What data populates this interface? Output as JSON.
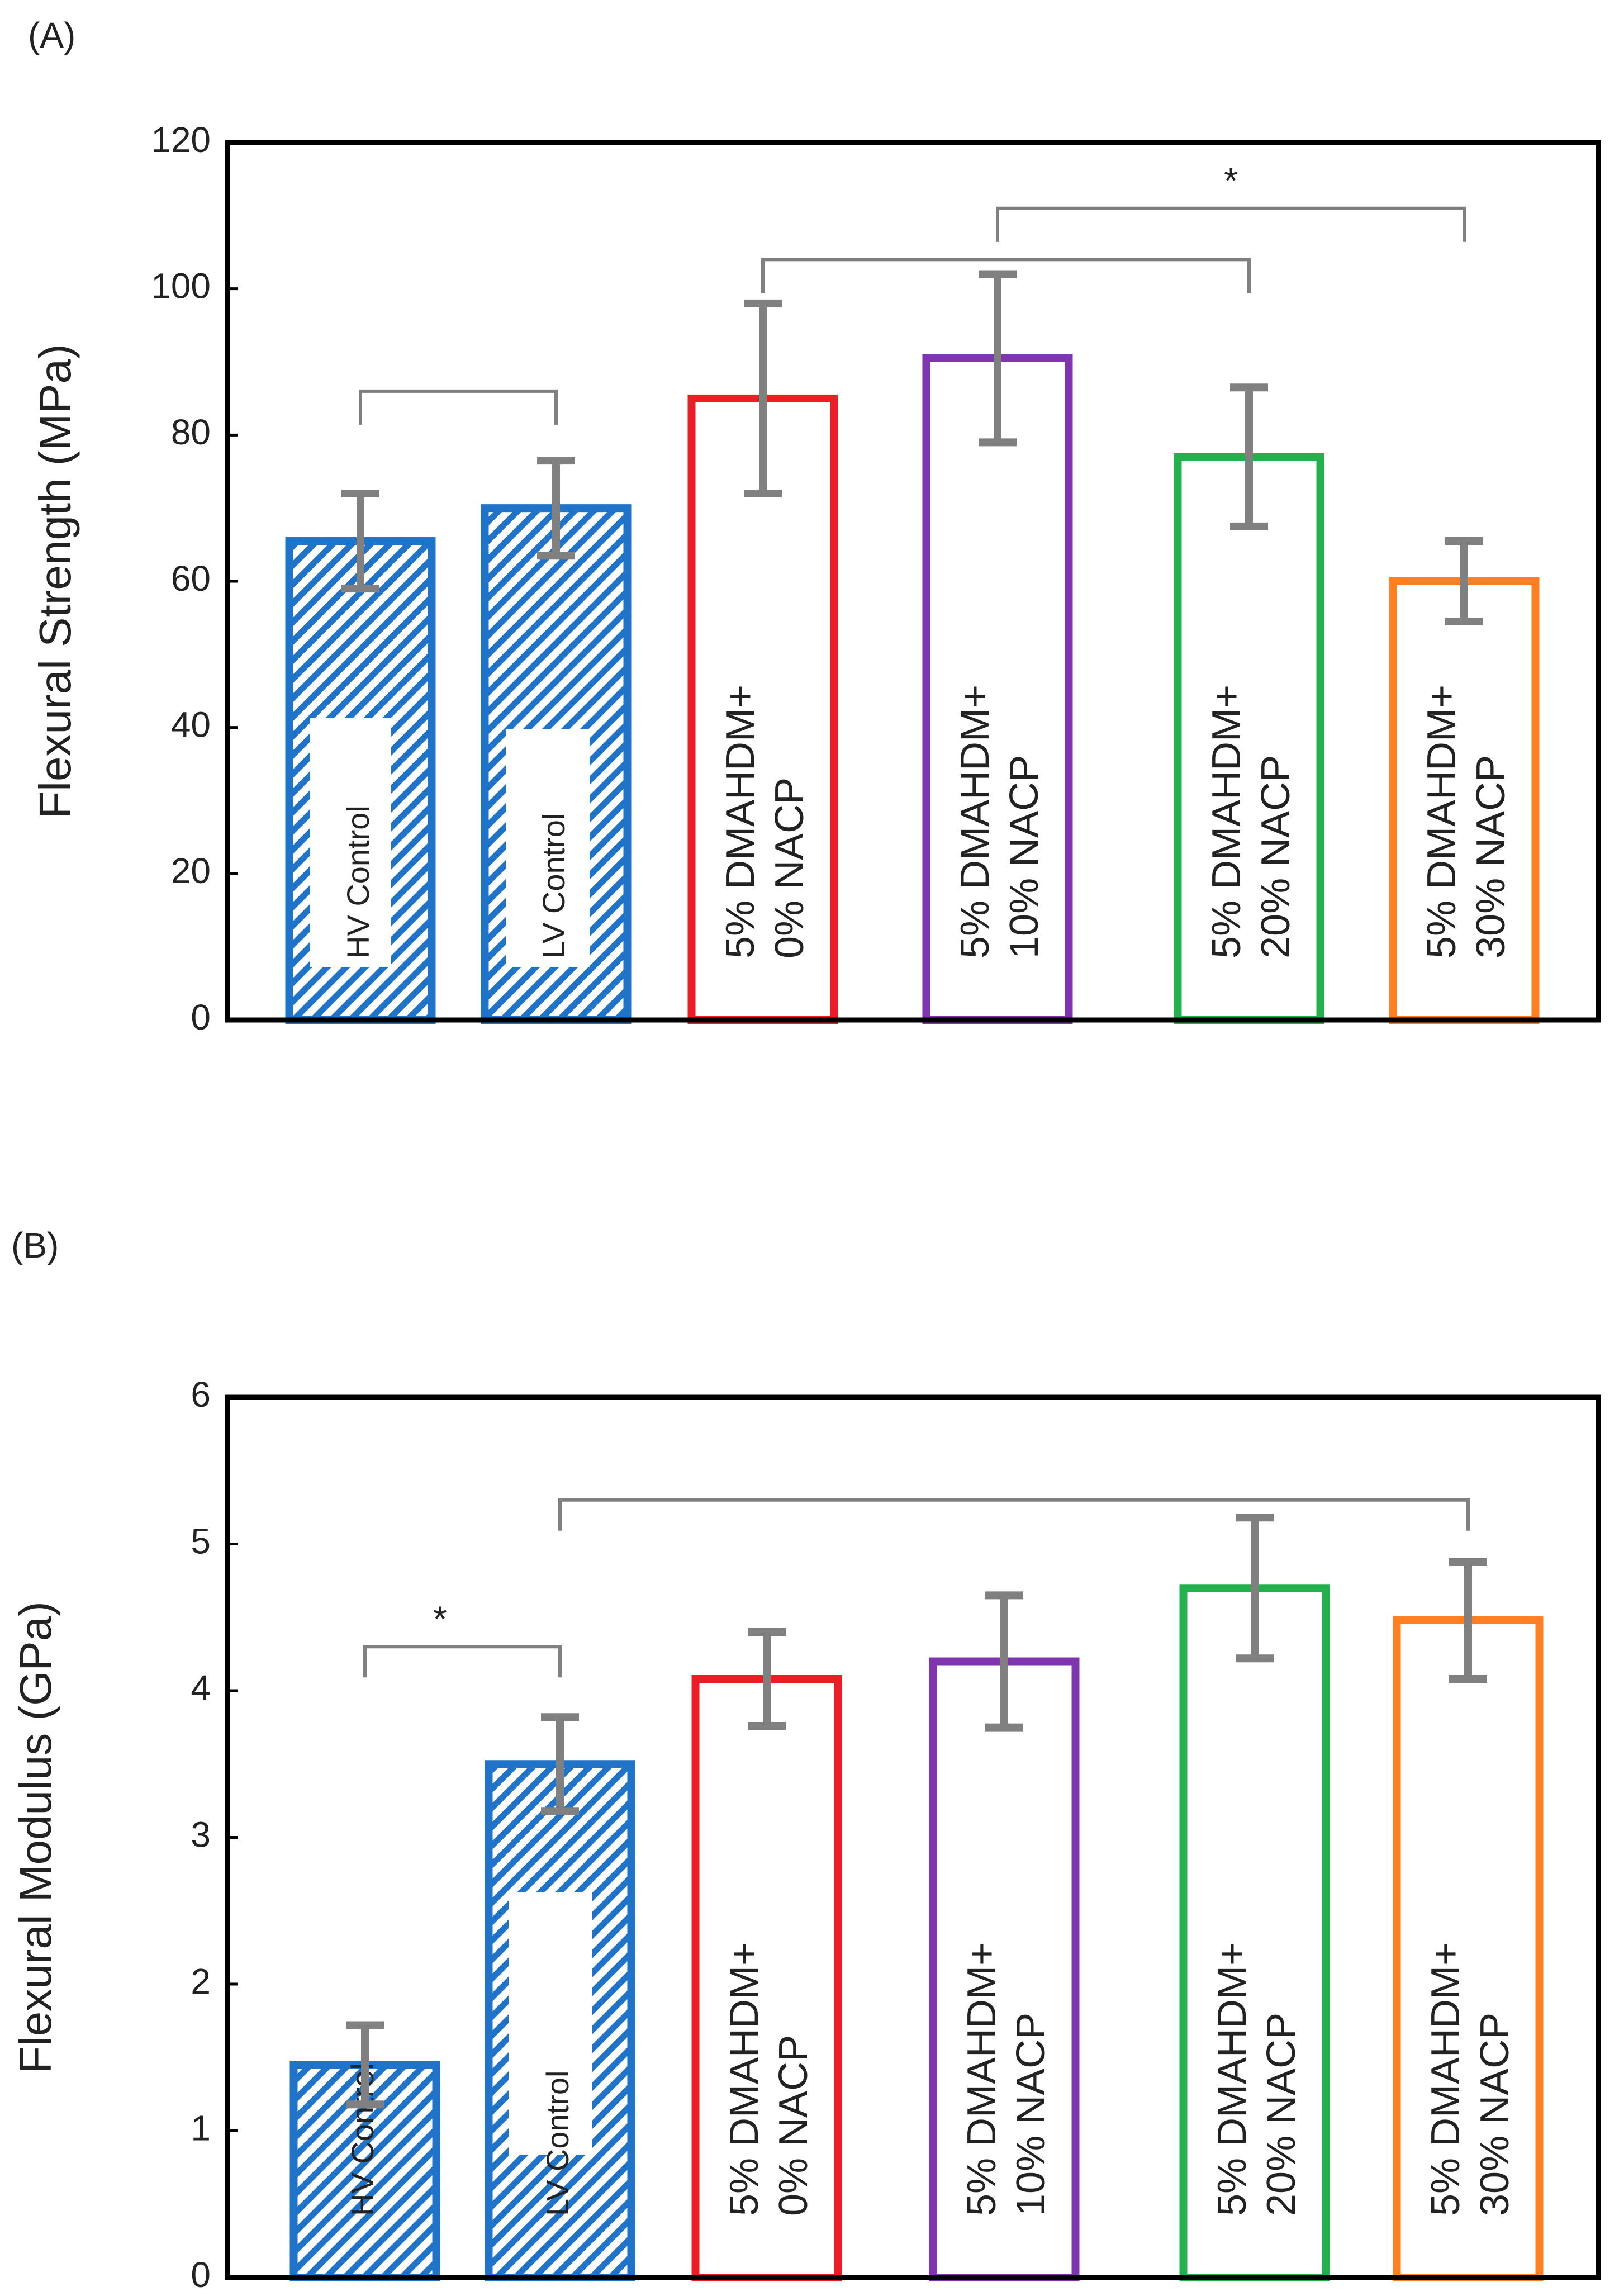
{
  "colors": {
    "hatch_blue": "#1f73c8",
    "red": "#ee1c25",
    "purple": "#7e35ad",
    "green": "#23b14d",
    "orange": "#ff7f22",
    "error_bar": "#808080",
    "axis": "#000000"
  },
  "chart_data": [
    {
      "type": "bar",
      "panel_label": "(A)",
      "title": "",
      "xlabel": "",
      "ylabel": "Flexural Strength (MPa)",
      "ylim": [
        0,
        120
      ],
      "yticks": [
        "0",
        "20",
        "40",
        "60",
        "80",
        "100",
        "120"
      ],
      "categories": [
        [
          "HV Control"
        ],
        [
          "LV Control"
        ],
        [
          "5% DMAHDM+",
          "0% NACP"
        ],
        [
          "5% DMAHDM+",
          "10% NACP"
        ],
        [
          "5% DMAHDM+",
          "20% NACP"
        ],
        [
          "5% DMAHDM+",
          "30% NACP"
        ]
      ],
      "values": [
        65.5,
        70,
        85,
        90.5,
        77,
        60
      ],
      "error": [
        6.5,
        6.5,
        13,
        11.5,
        9.5,
        5.5
      ],
      "styles": [
        "hatched",
        "hatched",
        "outline",
        "outline",
        "outline",
        "outline"
      ],
      "bar_colors": [
        "hatch_blue",
        "hatch_blue",
        "red",
        "purple",
        "green",
        "orange"
      ],
      "brackets": [
        {
          "from": 0,
          "to": 1,
          "level": 86,
          "label": ""
        },
        {
          "from": 2,
          "to": 4,
          "level": 104,
          "label": ""
        },
        {
          "from": 3,
          "to": 5,
          "level": 111,
          "label": "*"
        }
      ]
    },
    {
      "type": "bar",
      "panel_label": "(B)",
      "title": "",
      "xlabel": "",
      "ylabel": "Flexural Modulus (GPa)",
      "ylim": [
        0,
        6
      ],
      "yticks": [
        "0",
        "1",
        "2",
        "3",
        "4",
        "5",
        "6"
      ],
      "categories": [
        [
          "HV Control"
        ],
        [
          "LV Control"
        ],
        [
          "5% DMAHDM+",
          "0% NACP"
        ],
        [
          "5% DMAHDM+",
          "10% NACP"
        ],
        [
          "5% DMAHDM+",
          "20% NACP"
        ],
        [
          "5% DMAHDM+",
          "30% NACP"
        ]
      ],
      "values": [
        1.45,
        3.5,
        4.08,
        4.2,
        4.7,
        4.48
      ],
      "error": [
        0.27,
        0.32,
        0.32,
        0.45,
        0.48,
        0.4
      ],
      "styles": [
        "hatched",
        "hatched",
        "outline",
        "outline",
        "outline",
        "outline"
      ],
      "bar_colors": [
        "hatch_blue",
        "hatch_blue",
        "red",
        "purple",
        "green",
        "orange"
      ],
      "brackets": [
        {
          "from": 0,
          "to": 1,
          "level": 4.3,
          "label": "*"
        },
        {
          "from": 1,
          "to": 5,
          "level": 5.3,
          "label": ""
        }
      ]
    }
  ]
}
